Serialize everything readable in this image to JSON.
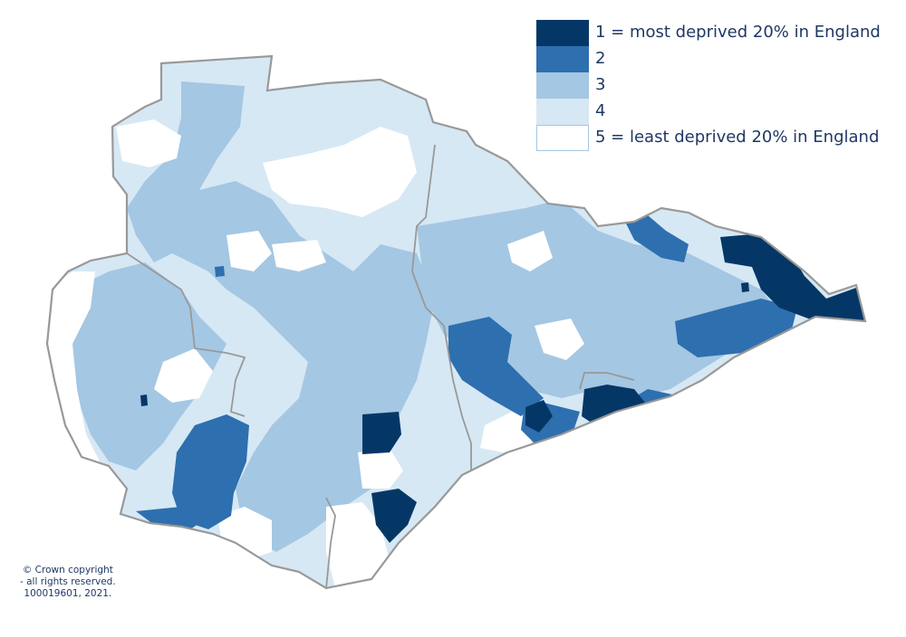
{
  "colors": {
    "q1": "#053766",
    "q2": "#2e6faf",
    "q3": "#a4c7e3",
    "q4": "#d6e8f4",
    "q5": "#ffffff",
    "outline": "#999999",
    "text": "#1f3864"
  },
  "legend": {
    "items": [
      {
        "label": "1 = most deprived 20% in England",
        "quintile": 1
      },
      {
        "label": "2",
        "quintile": 2
      },
      {
        "label": "3",
        "quintile": 3
      },
      {
        "label": "4",
        "quintile": 4
      },
      {
        "label": "5 = least deprived 20% in England",
        "quintile": 5
      }
    ]
  },
  "copyright": {
    "line1": "© Crown copyright",
    "line2": "- all rights reserved.",
    "line3": "100019601, 2021."
  }
}
